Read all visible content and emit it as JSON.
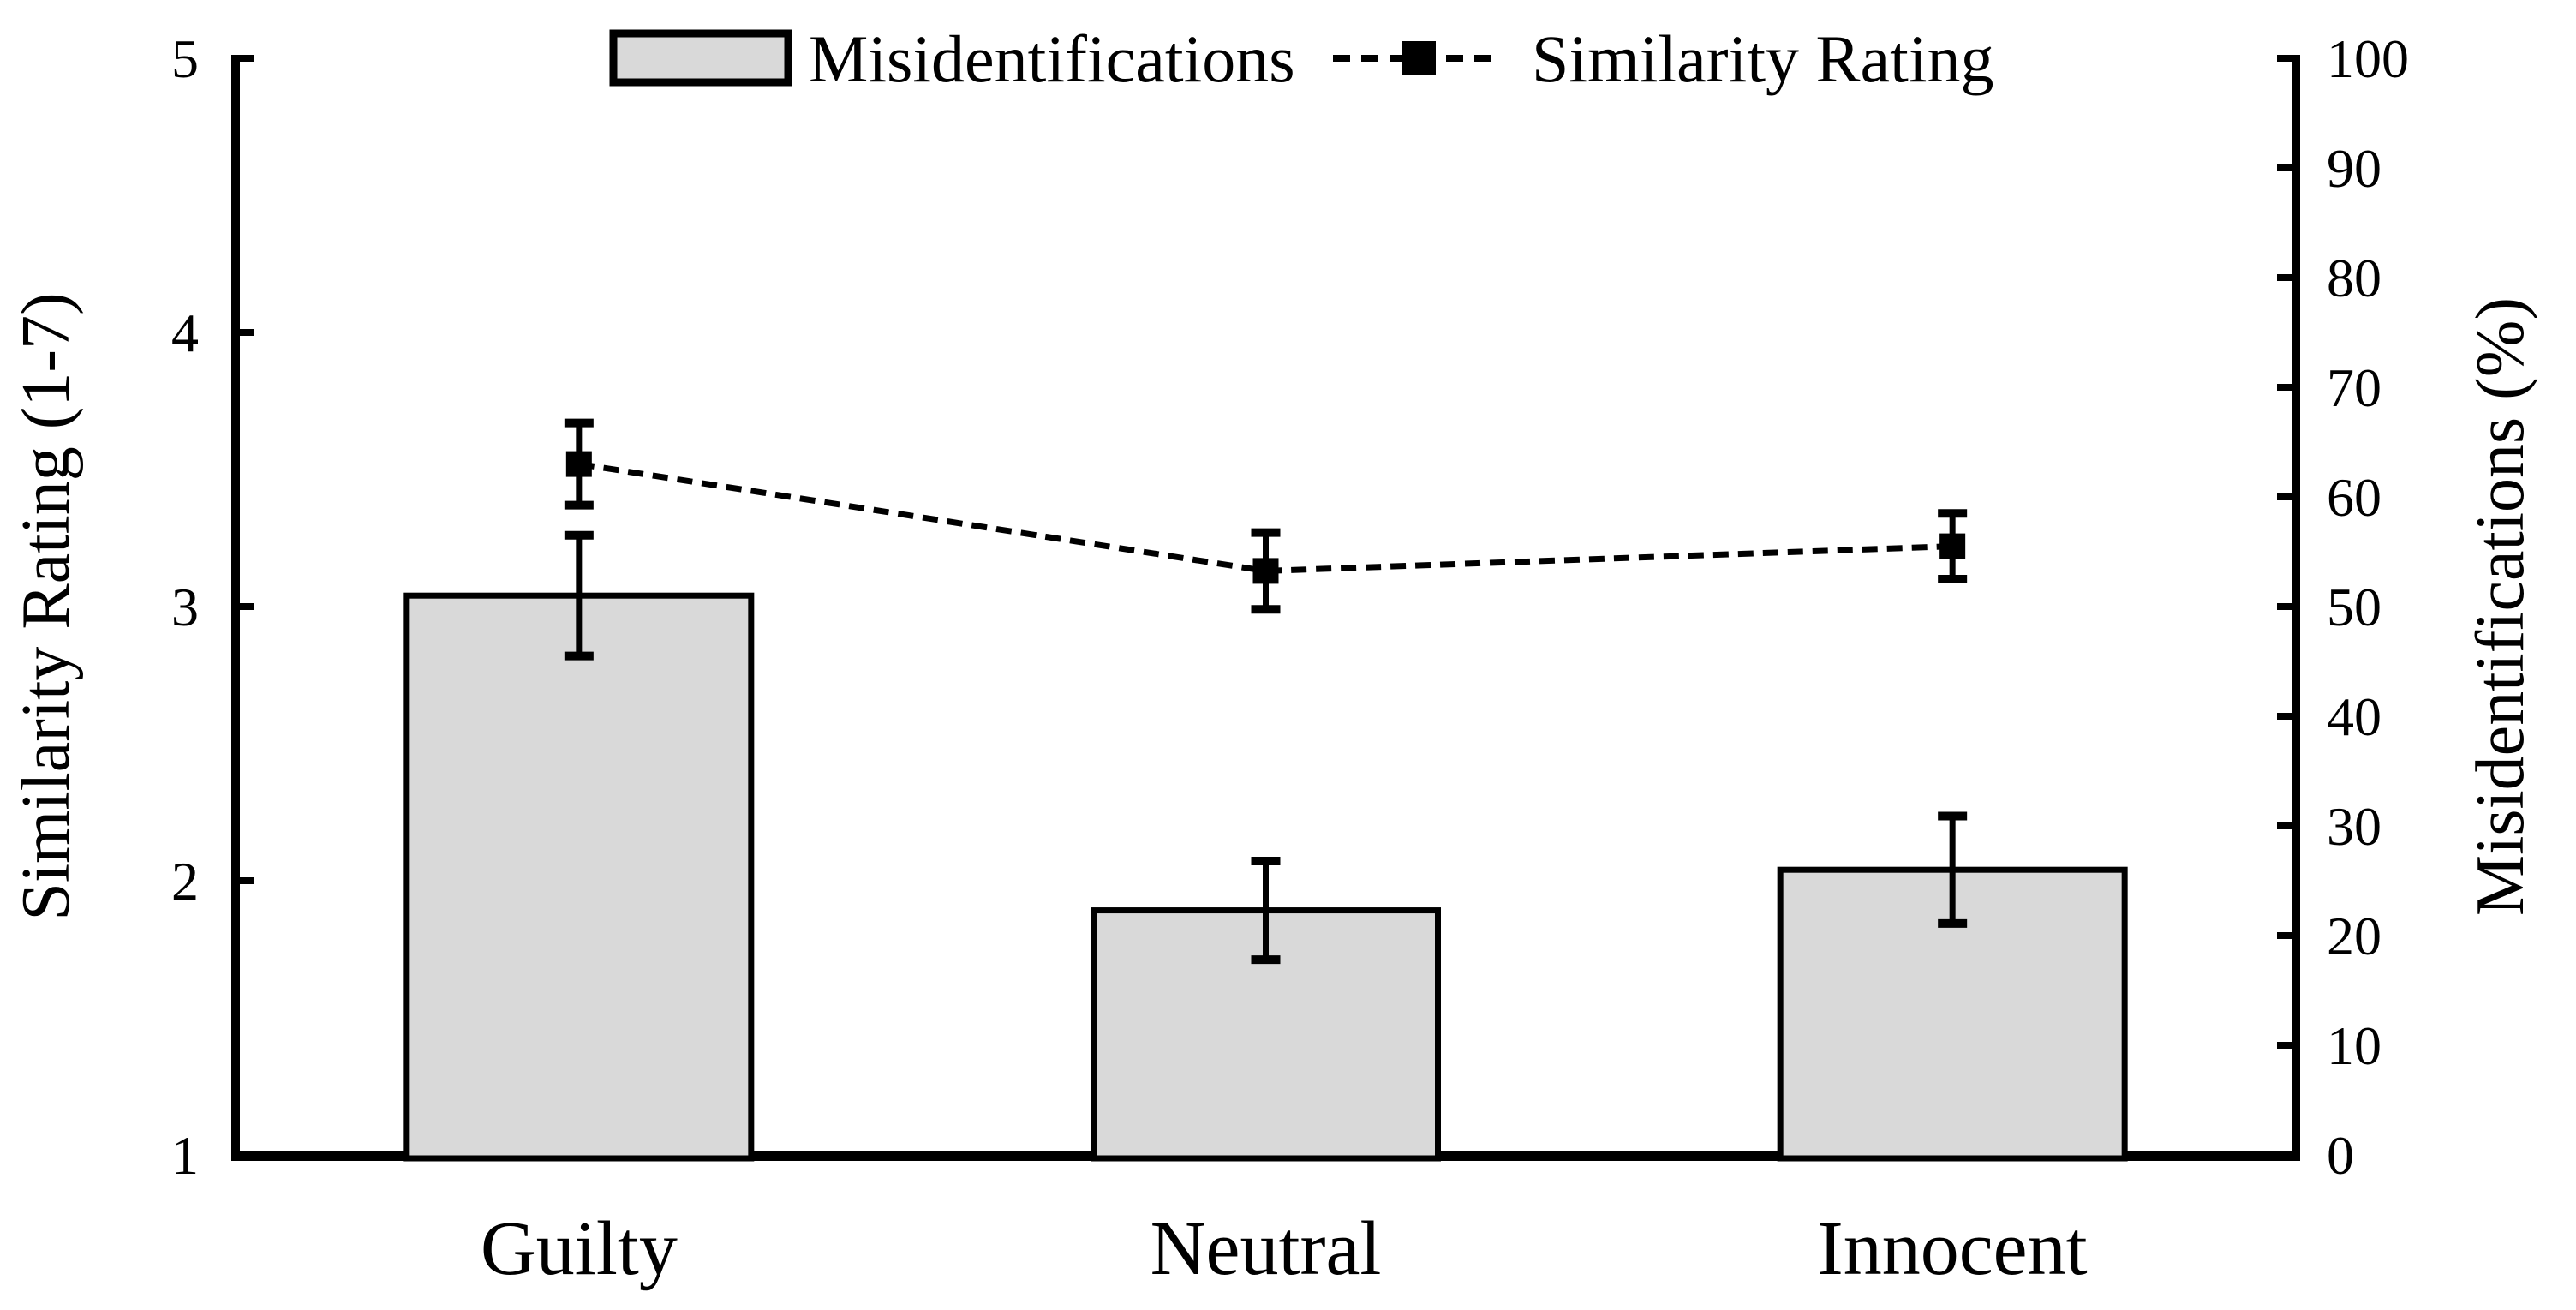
{
  "figure": {
    "background": "#ffffff",
    "ink_color": "#000000"
  },
  "legend": {
    "position": "top-center",
    "items": [
      {
        "label": "Misidentifications",
        "swatch": "gray-filled-rectangle"
      },
      {
        "label": "Similarity Rating",
        "swatch": "dashed-line-with-filled-square-marker"
      }
    ]
  },
  "chart_data": {
    "type": "bar",
    "subtype": "dual-axis bar + dashed line with error bars",
    "categories": [
      "Guilty",
      "Neutral",
      "Innocent"
    ],
    "series": [
      {
        "name": "Misidentifications",
        "type": "bar",
        "axis": "right",
        "values": [
          51,
          22.3,
          26
        ],
        "error_bars": [
          5.5,
          4.5,
          4.9
        ],
        "fill": "#d9d9d9",
        "stroke": "#000000"
      },
      {
        "name": "Similarity Rating",
        "type": "line",
        "axis": "left",
        "values": [
          3.52,
          3.13,
          3.22
        ],
        "error_bars": [
          0.15,
          0.14,
          0.12
        ],
        "line_style": "dashed",
        "marker": "filled-square",
        "color": "#000000"
      }
    ],
    "left_axis": {
      "title": "Similarity Rating (1-7)",
      "ticks": [
        1,
        2,
        3,
        4,
        5
      ],
      "range": [
        1,
        5
      ]
    },
    "right_axis": {
      "title": "Misidentifications (%)",
      "ticks": [
        0,
        10,
        20,
        30,
        40,
        50,
        60,
        70,
        80,
        90,
        100
      ],
      "range": [
        0,
        100
      ]
    },
    "x_axis": {
      "labels": [
        "Guilty",
        "Neutral",
        "Innocent"
      ]
    },
    "grid": false,
    "legend_position": "top"
  }
}
